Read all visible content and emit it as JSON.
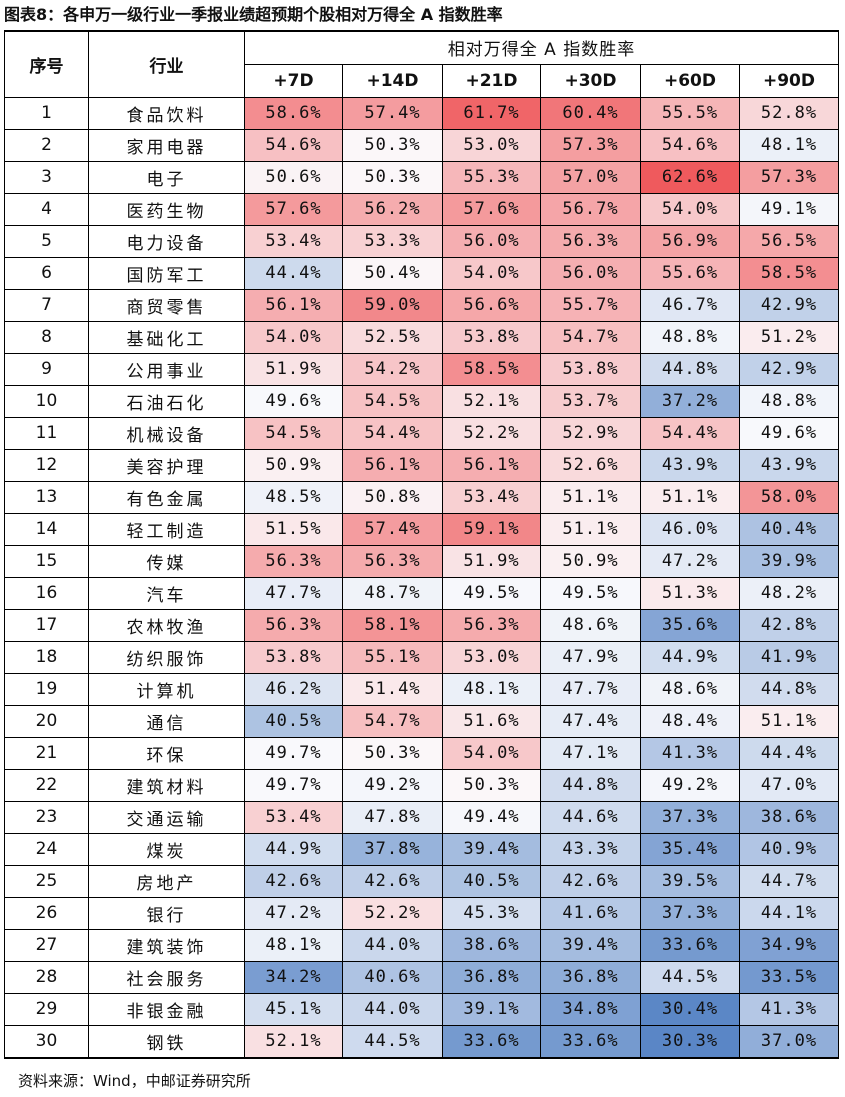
{
  "title": "图表8：各申万一级行业一季报业绩超预期个股相对万得全 A 指数胜率",
  "source": "资料来源：Wind，中邮证券研究所",
  "table": {
    "header": {
      "index": "序号",
      "industry": "行业",
      "group": "相对万得全 A 指数胜率",
      "periods": [
        "+7D",
        "+14D",
        "+21D",
        "+30D",
        "+60D",
        "+90D"
      ]
    },
    "rows": [
      {
        "no": "1",
        "industry": "食品饮料",
        "values": [
          "58.6%",
          "57.4%",
          "61.7%",
          "60.4%",
          "55.5%",
          "52.8%"
        ]
      },
      {
        "no": "2",
        "industry": "家用电器",
        "values": [
          "54.6%",
          "50.3%",
          "53.0%",
          "57.3%",
          "54.6%",
          "48.1%"
        ]
      },
      {
        "no": "3",
        "industry": "电子",
        "values": [
          "50.6%",
          "50.3%",
          "55.3%",
          "57.0%",
          "62.6%",
          "57.3%"
        ]
      },
      {
        "no": "4",
        "industry": "医药生物",
        "values": [
          "57.6%",
          "56.2%",
          "57.6%",
          "56.7%",
          "54.0%",
          "49.1%"
        ]
      },
      {
        "no": "5",
        "industry": "电力设备",
        "values": [
          "53.4%",
          "53.3%",
          "56.0%",
          "56.3%",
          "56.9%",
          "56.5%"
        ]
      },
      {
        "no": "6",
        "industry": "国防军工",
        "values": [
          "44.4%",
          "50.4%",
          "54.0%",
          "56.0%",
          "55.6%",
          "58.5%"
        ]
      },
      {
        "no": "7",
        "industry": "商贸零售",
        "values": [
          "56.1%",
          "59.0%",
          "56.6%",
          "55.7%",
          "46.7%",
          "42.9%"
        ]
      },
      {
        "no": "8",
        "industry": "基础化工",
        "values": [
          "54.0%",
          "52.5%",
          "53.8%",
          "54.7%",
          "48.8%",
          "51.2%"
        ]
      },
      {
        "no": "9",
        "industry": "公用事业",
        "values": [
          "51.9%",
          "54.2%",
          "58.5%",
          "53.8%",
          "44.8%",
          "42.9%"
        ]
      },
      {
        "no": "10",
        "industry": "石油石化",
        "values": [
          "49.6%",
          "54.5%",
          "52.1%",
          "53.7%",
          "37.2%",
          "48.8%"
        ]
      },
      {
        "no": "11",
        "industry": "机械设备",
        "values": [
          "54.5%",
          "54.4%",
          "52.2%",
          "52.9%",
          "54.4%",
          "49.6%"
        ]
      },
      {
        "no": "12",
        "industry": "美容护理",
        "values": [
          "50.9%",
          "56.1%",
          "56.1%",
          "52.6%",
          "43.9%",
          "43.9%"
        ]
      },
      {
        "no": "13",
        "industry": "有色金属",
        "values": [
          "48.5%",
          "50.8%",
          "53.4%",
          "51.1%",
          "51.1%",
          "58.0%"
        ]
      },
      {
        "no": "14",
        "industry": "轻工制造",
        "values": [
          "51.5%",
          "57.4%",
          "59.1%",
          "51.1%",
          "46.0%",
          "40.4%"
        ]
      },
      {
        "no": "15",
        "industry": "传媒",
        "values": [
          "56.3%",
          "56.3%",
          "51.9%",
          "50.9%",
          "47.2%",
          "39.9%"
        ]
      },
      {
        "no": "16",
        "industry": "汽车",
        "values": [
          "47.7%",
          "48.7%",
          "49.5%",
          "49.5%",
          "51.3%",
          "48.2%"
        ]
      },
      {
        "no": "17",
        "industry": "农林牧渔",
        "values": [
          "56.3%",
          "58.1%",
          "56.3%",
          "48.6%",
          "35.6%",
          "42.8%"
        ]
      },
      {
        "no": "18",
        "industry": "纺织服饰",
        "values": [
          "53.8%",
          "55.1%",
          "53.0%",
          "47.9%",
          "44.9%",
          "41.9%"
        ]
      },
      {
        "no": "19",
        "industry": "计算机",
        "values": [
          "46.2%",
          "51.4%",
          "48.1%",
          "47.7%",
          "48.6%",
          "44.8%"
        ]
      },
      {
        "no": "20",
        "industry": "通信",
        "values": [
          "40.5%",
          "54.7%",
          "51.6%",
          "47.4%",
          "48.4%",
          "51.1%"
        ]
      },
      {
        "no": "21",
        "industry": "环保",
        "values": [
          "49.7%",
          "50.3%",
          "54.0%",
          "47.1%",
          "41.3%",
          "44.4%"
        ]
      },
      {
        "no": "22",
        "industry": "建筑材料",
        "values": [
          "49.7%",
          "49.2%",
          "50.3%",
          "44.8%",
          "49.2%",
          "47.0%"
        ]
      },
      {
        "no": "23",
        "industry": "交通运输",
        "values": [
          "53.4%",
          "47.8%",
          "49.4%",
          "44.6%",
          "37.3%",
          "38.6%"
        ]
      },
      {
        "no": "24",
        "industry": "煤炭",
        "values": [
          "44.9%",
          "37.8%",
          "39.4%",
          "43.3%",
          "35.4%",
          "40.9%"
        ]
      },
      {
        "no": "25",
        "industry": "房地产",
        "values": [
          "42.6%",
          "42.6%",
          "40.5%",
          "42.6%",
          "39.5%",
          "44.7%"
        ]
      },
      {
        "no": "26",
        "industry": "银行",
        "values": [
          "47.2%",
          "52.2%",
          "45.3%",
          "41.6%",
          "37.3%",
          "44.1%"
        ]
      },
      {
        "no": "27",
        "industry": "建筑装饰",
        "values": [
          "48.1%",
          "44.0%",
          "38.6%",
          "39.4%",
          "33.6%",
          "34.9%"
        ]
      },
      {
        "no": "28",
        "industry": "社会服务",
        "values": [
          "34.2%",
          "40.6%",
          "36.8%",
          "36.8%",
          "44.5%",
          "33.5%"
        ]
      },
      {
        "no": "29",
        "industry": "非银金融",
        "values": [
          "45.1%",
          "44.0%",
          "39.1%",
          "34.8%",
          "30.4%",
          "41.3%"
        ]
      },
      {
        "no": "30",
        "industry": "钢铁",
        "values": [
          "52.1%",
          "44.5%",
          "33.6%",
          "33.6%",
          "30.3%",
          "37.0%"
        ]
      }
    ]
  },
  "heatmap": {
    "min": 30.3,
    "mid": 50.0,
    "max": 62.6,
    "low_color": "#5a86c6",
    "mid_color": "#fbfbfd",
    "high_color": "#ef5a5d"
  }
}
